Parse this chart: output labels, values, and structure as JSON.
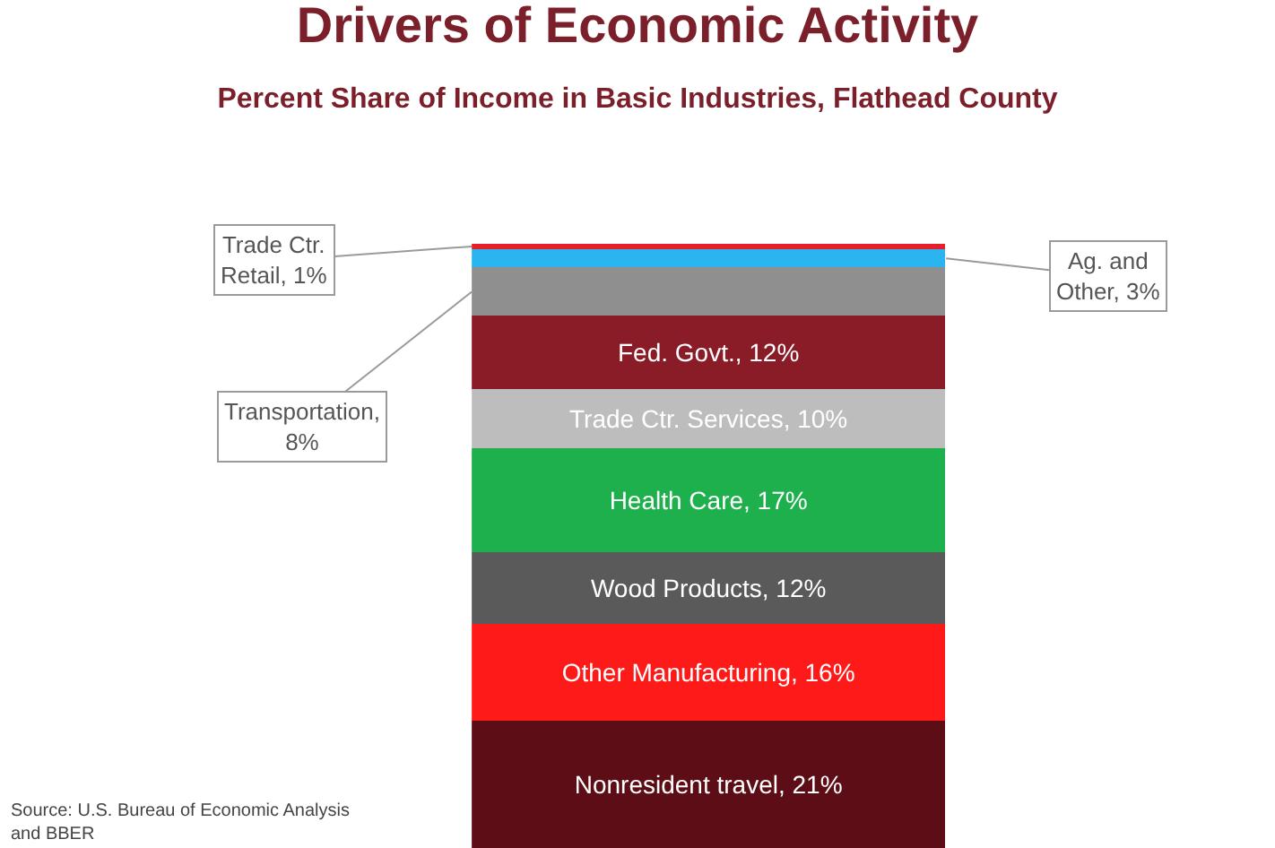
{
  "chart_data": {
    "type": "bar",
    "stacked": true,
    "title": "Drivers of Economic Activity",
    "subtitle": "Percent Share of Income in Basic Industries, Flathead County",
    "categories": [
      null
    ],
    "series": [
      {
        "color": "#5c0d16",
        "values": [
          21
        ],
        "value_labels": [
          "Nonresident travel, 21%"
        ]
      },
      {
        "color": "#ff1a1a",
        "values": [
          16
        ],
        "value_labels": [
          "Other Manufacturing, 16%"
        ]
      },
      {
        "color": "#5a5a5a",
        "values": [
          12
        ],
        "value_labels": [
          "Wood Products, 12%"
        ]
      },
      {
        "color": "#1fb04e",
        "values": [
          17
        ],
        "value_labels": [
          "Health Care, 17%"
        ]
      },
      {
        "color": "#bdbdbd",
        "values": [
          10
        ],
        "value_labels": [
          "Trade Ctr. Services, 10%"
        ]
      },
      {
        "color": "#8a1c28",
        "values": [
          12
        ],
        "value_labels": [
          "Fed. Govt., 12%"
        ]
      },
      {
        "color": "#8f8f8f",
        "values": [
          8
        ],
        "value_labels": [
          "Transportation, 8%"
        ]
      },
      {
        "color": "#2bb5f0",
        "values": [
          3
        ],
        "value_labels": [
          "Ag. and Other, 3%"
        ]
      },
      {
        "color": "#e5202a",
        "values": [
          1
        ],
        "value_labels": [
          "Trade Ctr. Retail, 1%"
        ]
      }
    ],
    "annotations": [
      "Source: U.S. Bureau of Economic Analysis and BBER"
    ]
  }
}
